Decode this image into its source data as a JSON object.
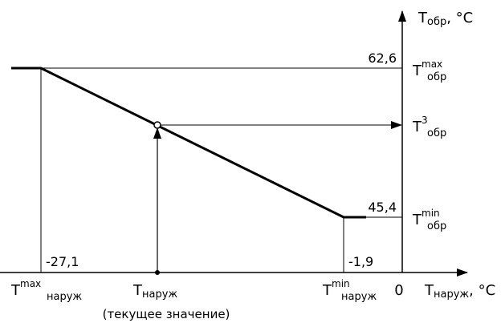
{
  "axes": {
    "y_label_main": "T",
    "y_label_sub": "обр",
    "y_label_unit": ", °C",
    "x_label_main": "T",
    "x_label_sub": "наруж",
    "x_label_unit": ", °C",
    "origin": "0"
  },
  "values": {
    "t_ret_max": "62,6",
    "t_ret_min": "45,4",
    "t_out_max": "-27,1",
    "t_out_min": "-1,9"
  },
  "labels": {
    "t_ret_max": {
      "main": "T",
      "sup": "max",
      "sub": "обр"
    },
    "t_ret_3": {
      "main": "T",
      "sup": "3",
      "sub": "обр"
    },
    "t_ret_min": {
      "main": "T",
      "sup": "min",
      "sub": "обр"
    },
    "t_out_max": {
      "main": "T",
      "sup": "max",
      "sub": "наруж"
    },
    "t_out_current": {
      "main": "T",
      "sub": "наруж"
    },
    "t_out_min": {
      "main": "T",
      "sup": "min",
      "sub": "наруж"
    },
    "current_note": "(текущее значение)"
  }
}
